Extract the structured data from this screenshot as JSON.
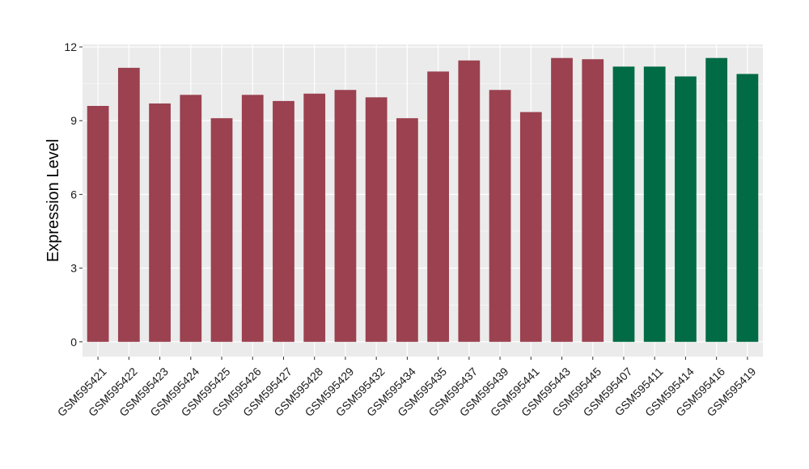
{
  "chart_data": {
    "type": "bar",
    "title": "",
    "xlabel": "",
    "ylabel": "Expression Level",
    "ylim": [
      -0.6,
      12.1
    ],
    "yticks": [
      0,
      3,
      6,
      9,
      12
    ],
    "grid": true,
    "categories": [
      "GSM595421",
      "GSM595422",
      "GSM595423",
      "GSM595424",
      "GSM595425",
      "GSM595426",
      "GSM595427",
      "GSM595428",
      "GSM595429",
      "GSM595432",
      "GSM595434",
      "GSM595435",
      "GSM595437",
      "GSM595439",
      "GSM595441",
      "GSM595443",
      "GSM595445",
      "GSM595407",
      "GSM595411",
      "GSM595414",
      "GSM595416",
      "GSM595419"
    ],
    "values": [
      9.6,
      11.15,
      9.7,
      10.05,
      9.1,
      10.05,
      9.8,
      10.1,
      10.25,
      9.95,
      9.1,
      11.0,
      11.45,
      10.25,
      9.35,
      11.55,
      11.5,
      11.2,
      11.2,
      10.8,
      11.55,
      10.9
    ],
    "groups": [
      "red",
      "red",
      "red",
      "red",
      "red",
      "red",
      "red",
      "red",
      "red",
      "red",
      "red",
      "red",
      "red",
      "red",
      "red",
      "red",
      "red",
      "green",
      "green",
      "green",
      "green",
      "green"
    ],
    "colors": {
      "red": "#9b4150",
      "green": "#006b45",
      "panel_background": "#ebebeb",
      "grid": "#ffffff"
    }
  }
}
